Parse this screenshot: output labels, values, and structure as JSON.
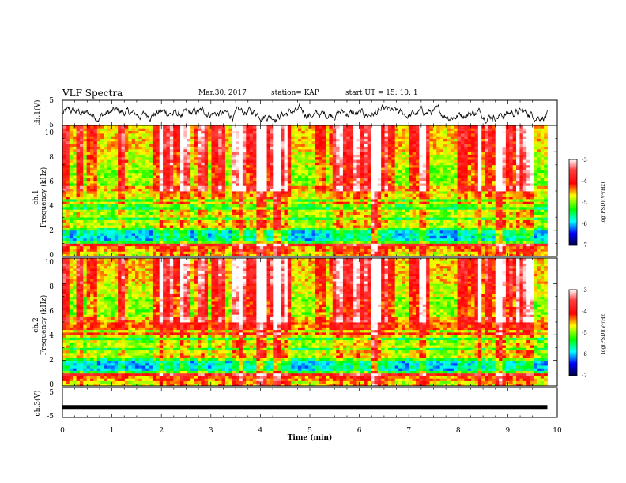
{
  "header": {
    "title": "VLF Spectra",
    "date": "Mar.30, 2017",
    "station": "station= KAP",
    "start": "start  UT =   15: 10: 1"
  },
  "chart_data": [
    {
      "type": "line",
      "panel": "waveform ch.1",
      "ylabel": "ch.1(V)",
      "ylim": [
        -5,
        5
      ],
      "yticks": [
        "5",
        "-5"
      ],
      "xlim": [
        0,
        10
      ],
      "note_x_extent_min": 9.8
    },
    {
      "type": "heatmap",
      "panel": "spectrogram ch.1",
      "ylabel_line1": "ch.1",
      "ylabel_line2": "Frequency (kHz)",
      "ylim": [
        0,
        10
      ],
      "yticks": [
        "0",
        "2",
        "4",
        "6",
        "8",
        "10"
      ],
      "xlim": [
        0,
        10
      ],
      "x_extent_min": 9.8,
      "colorbar": {
        "label": "log(PSD)(V²/Hz)",
        "range": [
          -7,
          -3
        ],
        "ticks": [
          "-3",
          "-4",
          "-5",
          "-6",
          "-7"
        ]
      }
    },
    {
      "type": "heatmap",
      "panel": "spectrogram ch.2",
      "ylabel_line1": "ch.2",
      "ylabel_line2": "Frequency (kHz)",
      "ylim": [
        0,
        10
      ],
      "yticks": [
        "0",
        "2",
        "4",
        "6",
        "8",
        "10"
      ],
      "xlim": [
        0,
        10
      ],
      "x_extent_min": 9.8,
      "colorbar": {
        "label": "log(PSD)(V²/Hz)",
        "range": [
          -7,
          -3
        ],
        "ticks": [
          "-3",
          "-4",
          "-5",
          "-6",
          "-7"
        ]
      }
    },
    {
      "type": "line",
      "panel": "waveform ch.3",
      "ylabel": "ch.3(V)",
      "ylim": [
        -5,
        5
      ],
      "yticks": [
        "5",
        "-5"
      ],
      "xlim": [
        0,
        10
      ],
      "x_extent_min": 9.8,
      "constant_value": -1.5
    }
  ],
  "xaxis": {
    "label": "Time (min)",
    "ticks": [
      "0",
      "1",
      "2",
      "3",
      "4",
      "5",
      "6",
      "7",
      "8",
      "9",
      "10"
    ]
  },
  "colors": {
    "colorscale": [
      "#000080",
      "#0000ff",
      "#00ffff",
      "#00ff00",
      "#ffff00",
      "#ff0000",
      "#ffffff"
    ]
  }
}
